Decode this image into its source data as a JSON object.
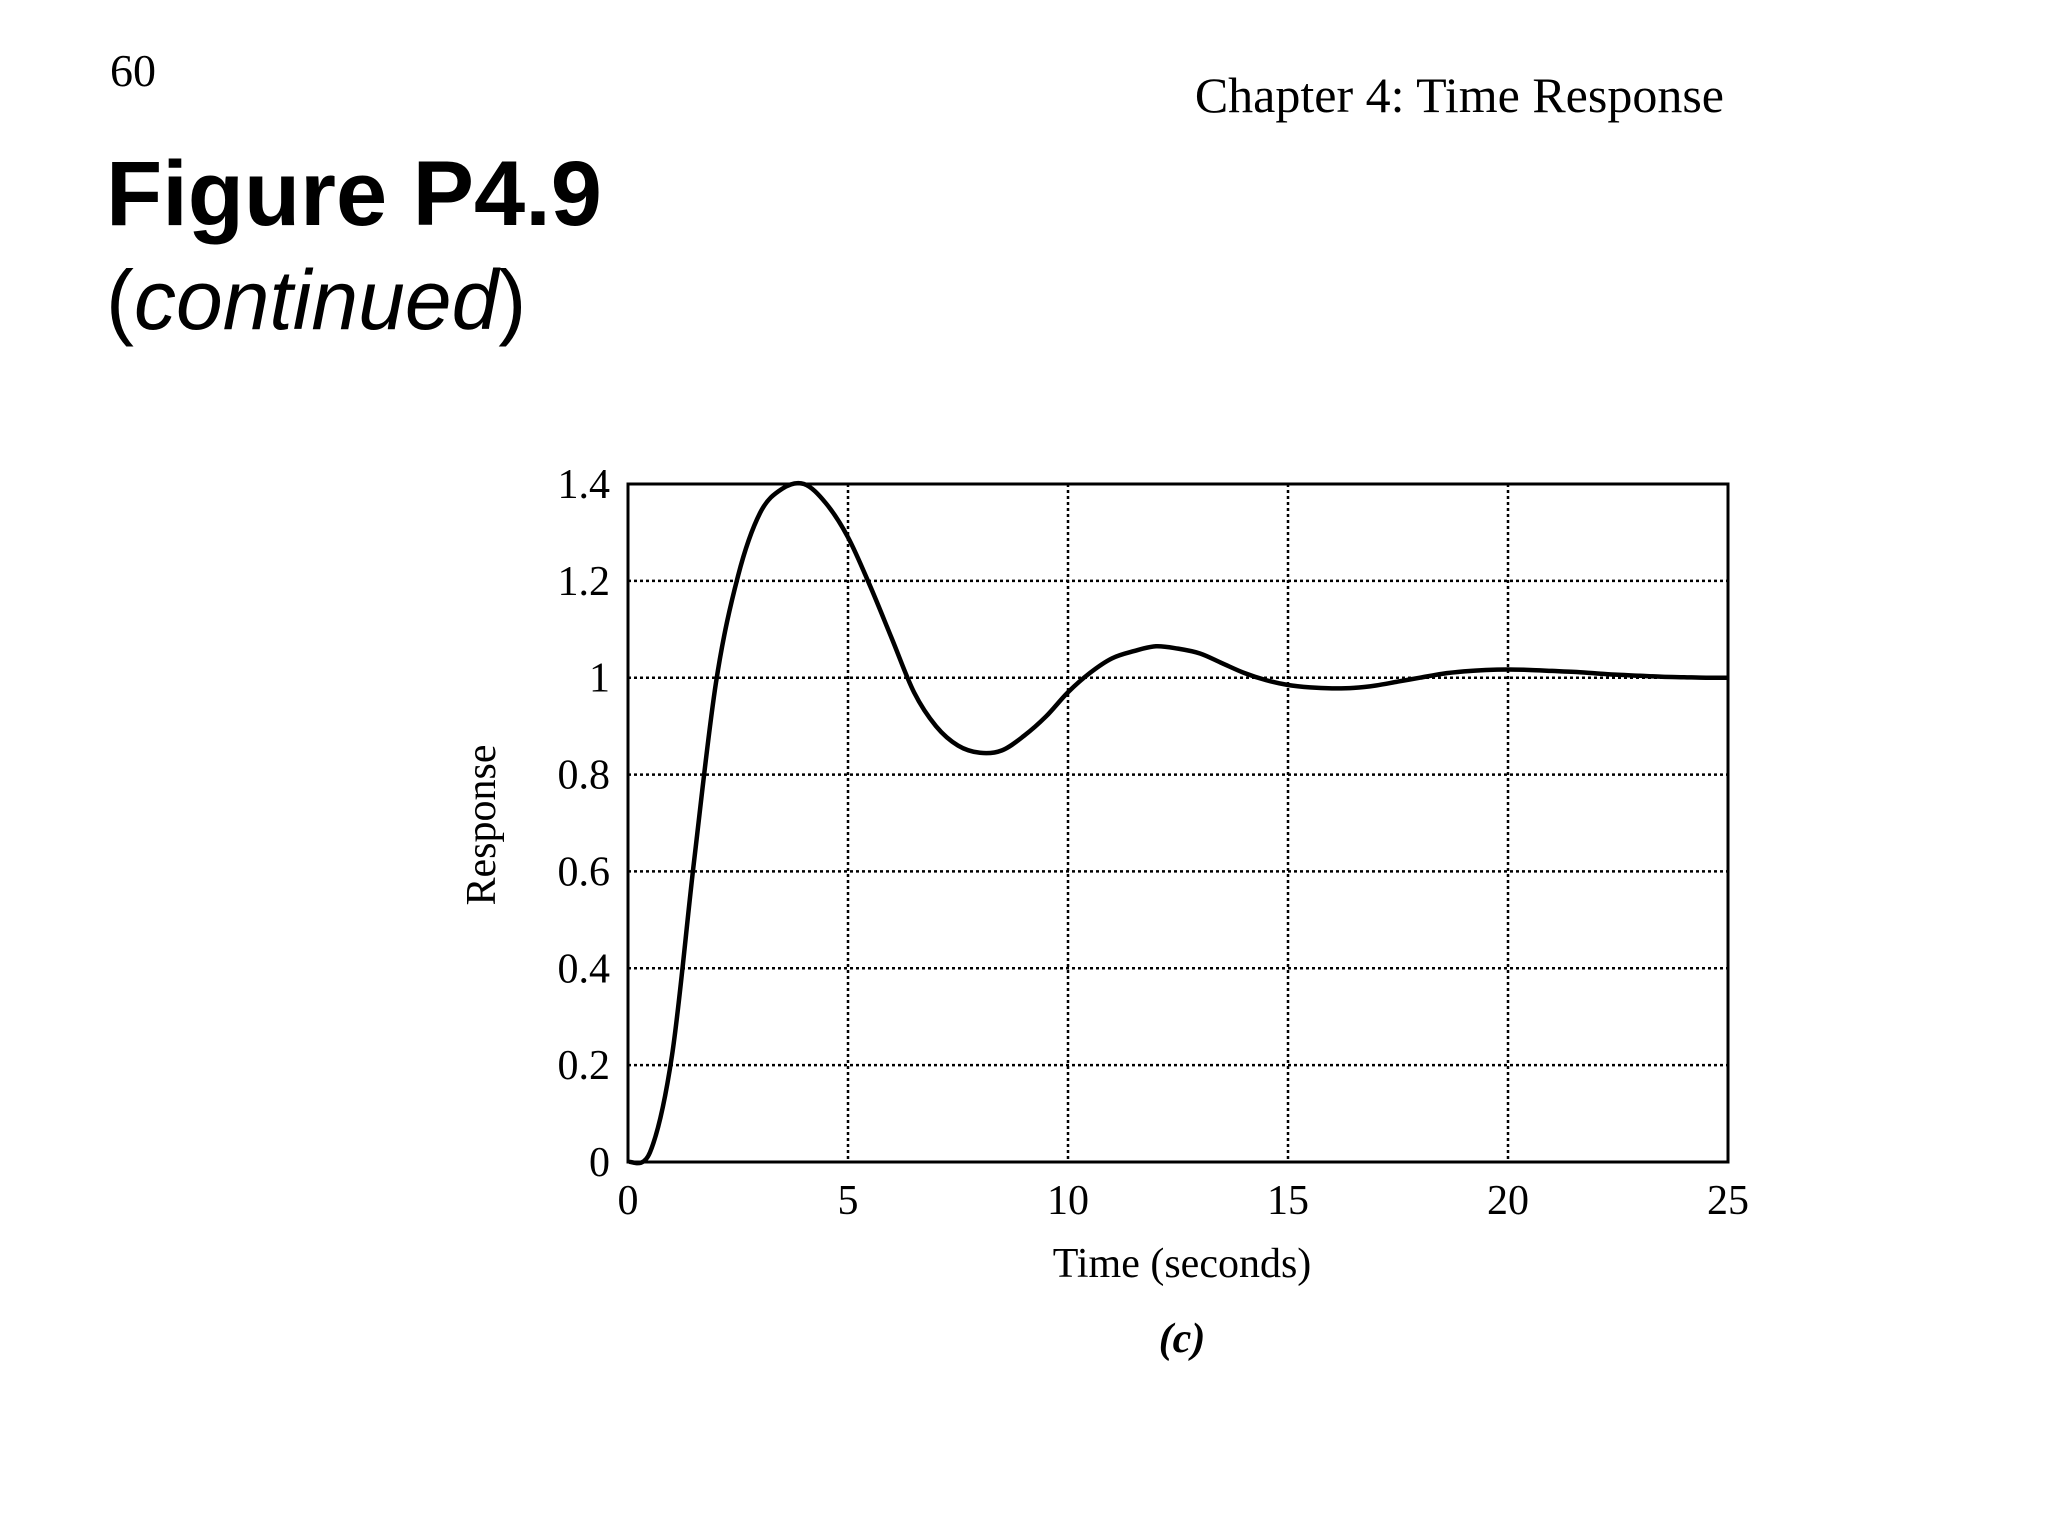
{
  "page_number": "60",
  "chapter_title": "Chapter 4: Time Response",
  "figure_title": "Figure P4.9",
  "figure_subtitle": {
    "open_paren": "(",
    "word": "continued",
    "close_paren": ")"
  },
  "chart_data": {
    "type": "line",
    "xlabel": "Time (seconds)",
    "ylabel": "Response",
    "panel_label": "(c)",
    "xlim": [
      0,
      25
    ],
    "ylim": [
      0,
      1.4
    ],
    "xticks": [
      "0",
      "5",
      "10",
      "15",
      "20",
      "25"
    ],
    "yticks": [
      "0",
      "0.2",
      "0.4",
      "0.6",
      "0.8",
      "1",
      "1.2",
      "1.4"
    ],
    "grid": true,
    "series": [
      {
        "x": [
          0,
          0.5,
          1,
          1.5,
          2,
          2.5,
          3,
          3.5,
          4,
          4.5,
          5,
          5.5,
          6,
          6.5,
          7,
          7.5,
          8,
          8.5,
          9,
          9.5,
          10,
          10.5,
          11,
          11.5,
          12,
          12.5,
          13,
          13.5,
          14,
          14.5,
          15,
          15.5,
          16,
          16.5,
          17,
          17.5,
          18,
          18.5,
          19,
          19.5,
          20,
          20.5,
          21,
          21.5,
          22,
          22.5,
          23,
          23.5,
          24,
          24.5,
          25
        ],
        "y": [
          0,
          0.02,
          0.22,
          0.62,
          0.99,
          1.21,
          1.34,
          1.39,
          1.4,
          1.36,
          1.29,
          1.19,
          1.08,
          0.97,
          0.9,
          0.86,
          0.845,
          0.85,
          0.88,
          0.92,
          0.97,
          1.01,
          1.04,
          1.055,
          1.065,
          1.06,
          1.05,
          1.03,
          1.01,
          0.995,
          0.985,
          0.98,
          0.978,
          0.979,
          0.984,
          0.992,
          1.0,
          1.008,
          1.013,
          1.016,
          1.017,
          1.016,
          1.014,
          1.012,
          1.009,
          1.006,
          1.004,
          1.002,
          1.001,
          1.0,
          1.0
        ]
      }
    ]
  }
}
